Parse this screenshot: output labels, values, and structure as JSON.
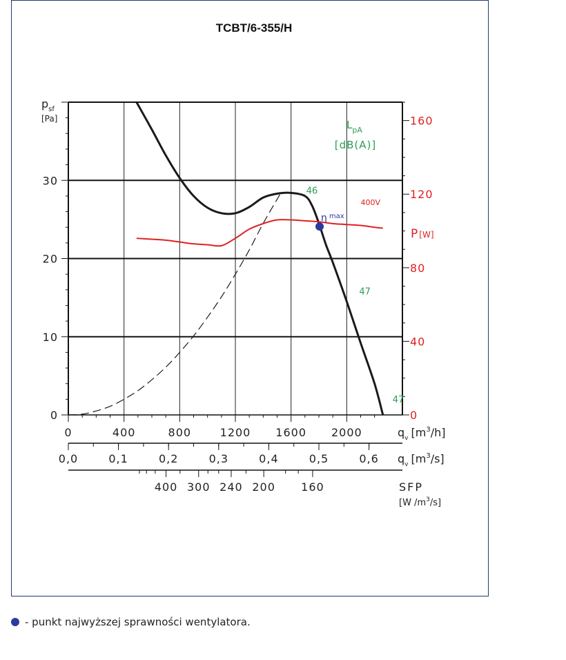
{
  "chart_data": {
    "type": "line",
    "title": "TCBT/6-355/H",
    "y_left": {
      "label_main": "p",
      "label_sub": "sf",
      "unit": "[Pa]",
      "ticks": [
        0,
        10,
        20,
        30
      ],
      "range": [
        0,
        40
      ]
    },
    "y_right": {
      "label_main": "P",
      "unit": "[W]",
      "ticks": [
        0,
        40,
        80,
        120,
        160
      ],
      "range": [
        0,
        170
      ]
    },
    "x_flow_h": {
      "label": "q",
      "label_sub": "v",
      "unit_pre": "[m",
      "unit_sup": "3",
      "unit_post": "/h]",
      "ticks": [
        0,
        400,
        800,
        1200,
        1600,
        2000
      ],
      "range": [
        0,
        2400
      ]
    },
    "x_flow_s": {
      "label": "q",
      "label_sub": "v",
      "unit_pre": "[m",
      "unit_sup": "3",
      "unit_post": "/s]",
      "ticks": [
        "0,0",
        "0,1",
        "0,2",
        "0,3",
        "0,4",
        "0,5",
        "0,6"
      ]
    },
    "x_sfp": {
      "label": "SFP",
      "unit_pre": "[W /m",
      "unit_sup": "3",
      "unit_post": "/s]",
      "ticks": [
        "400",
        "300",
        "240",
        "200",
        "160"
      ]
    },
    "lpa": {
      "label_main": "L",
      "label_sub": "pA",
      "unit": "[dB(A)]",
      "points": [
        {
          "q": 1620,
          "p": 28.3,
          "value": "46"
        },
        {
          "q": 2000,
          "p": 15.4,
          "value": "47"
        },
        {
          "q": 2240,
          "p": 1.6,
          "value": "47"
        }
      ]
    },
    "eta_max": {
      "symbol": "η",
      "sub": "max",
      "q": 1805,
      "p": 24.1
    },
    "series": [
      {
        "key": "pressure",
        "color": "#1a1a1a",
        "points": [
          [
            490,
            40
          ],
          [
            600,
            36.5
          ],
          [
            700,
            33.2
          ],
          [
            800,
            30.3
          ],
          [
            900,
            28.0
          ],
          [
            1000,
            26.5
          ],
          [
            1100,
            25.8
          ],
          [
            1200,
            25.8
          ],
          [
            1300,
            26.6
          ],
          [
            1400,
            27.8
          ],
          [
            1500,
            28.3
          ],
          [
            1600,
            28.4
          ],
          [
            1700,
            28.0
          ],
          [
            1750,
            26.8
          ],
          [
            1800,
            24.5
          ],
          [
            1850,
            21.8
          ],
          [
            1900,
            19.5
          ],
          [
            2000,
            14.5
          ],
          [
            2100,
            9.2
          ],
          [
            2200,
            4.0
          ],
          [
            2260,
            0
          ]
        ]
      },
      {
        "key": "system",
        "color": "#1a1a1a",
        "dashed": true,
        "points": [
          [
            0,
            0
          ],
          [
            100,
            0.1
          ],
          [
            200,
            0.5
          ],
          [
            300,
            1.1
          ],
          [
            400,
            2.0
          ],
          [
            500,
            3.1
          ],
          [
            600,
            4.5
          ],
          [
            700,
            6.1
          ],
          [
            800,
            8.0
          ],
          [
            900,
            10.1
          ],
          [
            1000,
            12.5
          ],
          [
            1100,
            15.1
          ],
          [
            1200,
            18.0
          ],
          [
            1300,
            21.1
          ],
          [
            1400,
            24.5
          ],
          [
            1530,
            28.5
          ]
        ]
      },
      {
        "key": "power",
        "name": "400V",
        "color": "#e02020",
        "axis": "right",
        "points": [
          [
            490,
            96
          ],
          [
            600,
            95.5
          ],
          [
            700,
            95
          ],
          [
            800,
            94
          ],
          [
            900,
            93
          ],
          [
            1000,
            92.5
          ],
          [
            1100,
            92
          ],
          [
            1200,
            96
          ],
          [
            1300,
            101
          ],
          [
            1400,
            104
          ],
          [
            1500,
            106
          ],
          [
            1600,
            106
          ],
          [
            1700,
            105.5
          ],
          [
            1800,
            105
          ],
          [
            1900,
            104
          ],
          [
            2000,
            103.5
          ],
          [
            2100,
            103
          ],
          [
            2200,
            102
          ],
          [
            2260,
            101.5
          ]
        ]
      }
    ]
  },
  "legend": {
    "text": "- punkt najwyższej sprawności wentylatora."
  },
  "colors": {
    "green": "#2a9d55",
    "red": "#e02020",
    "blue": "#2b3a9e",
    "frame": "#1f3a6e"
  }
}
